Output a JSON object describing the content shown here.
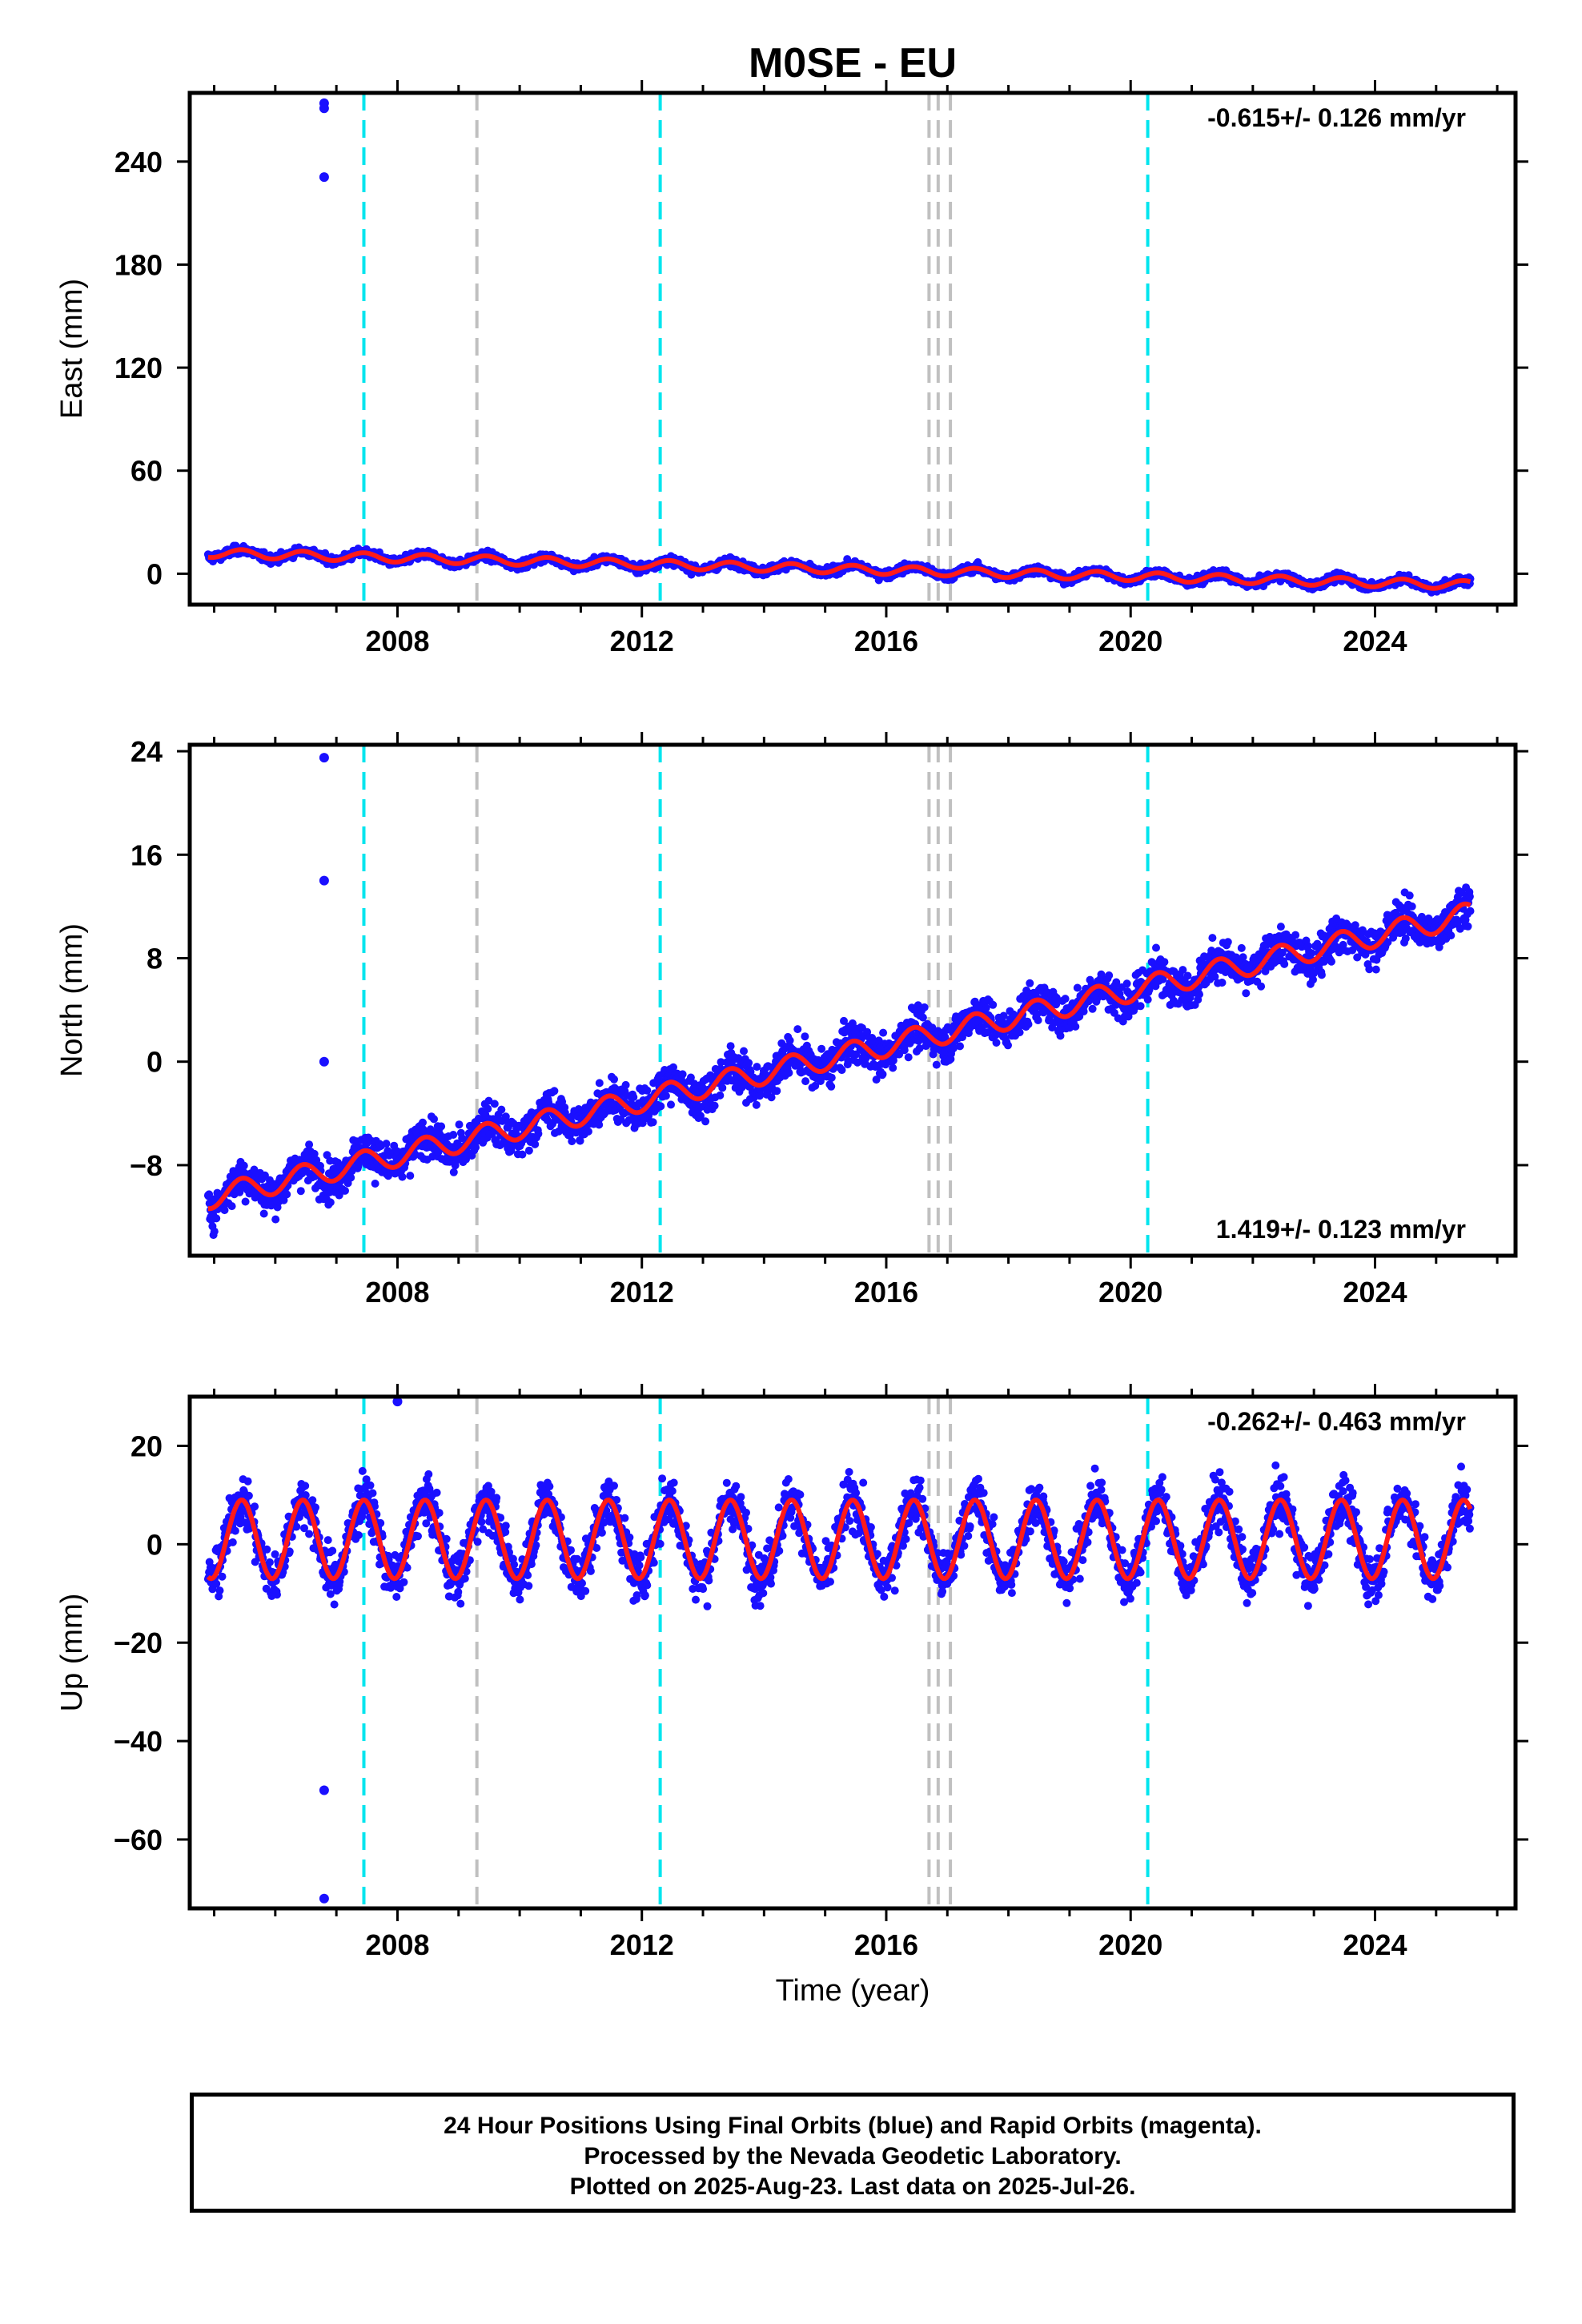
{
  "title": "M0SE - EU",
  "xlabel": "Time (year)",
  "footer": {
    "line1": "24 Hour Positions Using Final Orbits (blue) and Rapid Orbits (magenta).",
    "line2": "Processed by the Nevada Geodetic Laboratory.",
    "line3": "Plotted on 2025-Aug-23. Last data on 2025-Jul-26."
  },
  "colors": {
    "points": "#1a10ff",
    "model": "#ff1a1a",
    "break_cyan": "#00e5ee",
    "break_gray": "#c0c0c0"
  },
  "chart_data": [
    {
      "type": "scatter",
      "name": "east",
      "ylabel": "East (mm)",
      "ylim": [
        -18,
        280
      ],
      "xlim": [
        2004.6,
        2026.3
      ],
      "x_ticks": [
        2008,
        2012,
        2016,
        2020,
        2024
      ],
      "y_ticks": [
        0,
        60,
        120,
        180,
        240
      ],
      "rate_label": "-0.615+/- 0.126 mm/yr",
      "rate_position": "top-right",
      "data_start": 2004.9,
      "data_end": 2025.56,
      "trend": {
        "value_at_start": 12,
        "slope_mm_per_yr": -0.9
      },
      "seasonal": {
        "amplitude": 2.5,
        "noise": 2.2
      },
      "outliers": [
        [
          2006.8,
          274
        ],
        [
          2006.8,
          271
        ],
        [
          2006.8,
          231
        ]
      ],
      "breaks_cyan": [
        2007.45,
        2012.3,
        2020.28
      ],
      "breaks_gray": [
        2009.3,
        2016.7,
        2016.85,
        2017.05
      ]
    },
    {
      "type": "scatter",
      "name": "north",
      "ylabel": "North (mm)",
      "ylim": [
        -15,
        24.5
      ],
      "xlim": [
        2004.6,
        2026.3
      ],
      "x_ticks": [
        2008,
        2012,
        2016,
        2020,
        2024
      ],
      "y_ticks": [
        -8,
        0,
        8,
        16,
        24
      ],
      "rate_label": "1.419+/- 0.123 mm/yr",
      "rate_position": "bottom-right",
      "data_start": 2004.9,
      "data_end": 2025.56,
      "trend": {
        "value_at_start": -10.5,
        "slope_mm_per_yr": 1.06
      },
      "seasonal": {
        "amplitude": 0.9,
        "noise": 1.4
      },
      "outliers": [
        [
          2006.8,
          23.5
        ],
        [
          2006.8,
          14.0
        ],
        [
          2006.8,
          0.0
        ]
      ],
      "breaks_cyan": [
        2007.45,
        2012.3,
        2020.28
      ],
      "breaks_gray": [
        2009.3,
        2016.7,
        2016.85,
        2017.05
      ]
    },
    {
      "type": "scatter",
      "name": "up",
      "ylabel": "Up (mm)",
      "ylim": [
        -74,
        30
      ],
      "xlim": [
        2004.6,
        2026.3
      ],
      "x_ticks": [
        2008,
        2012,
        2016,
        2020,
        2024
      ],
      "y_ticks": [
        -60,
        -40,
        -20,
        0,
        20
      ],
      "rate_label": "-0.262+/- 0.463 mm/yr",
      "rate_position": "top-right",
      "data_start": 2004.9,
      "data_end": 2025.56,
      "trend": {
        "value_at_start": 1,
        "slope_mm_per_yr": 0.0
      },
      "seasonal": {
        "amplitude": 8,
        "noise": 4.5
      },
      "outliers": [
        [
          2006.8,
          -50
        ],
        [
          2006.8,
          -72
        ],
        [
          2008.0,
          29
        ]
      ],
      "breaks_cyan": [
        2007.45,
        2012.3,
        2020.28
      ],
      "breaks_gray": [
        2009.3,
        2016.7,
        2016.85,
        2017.05
      ]
    }
  ]
}
